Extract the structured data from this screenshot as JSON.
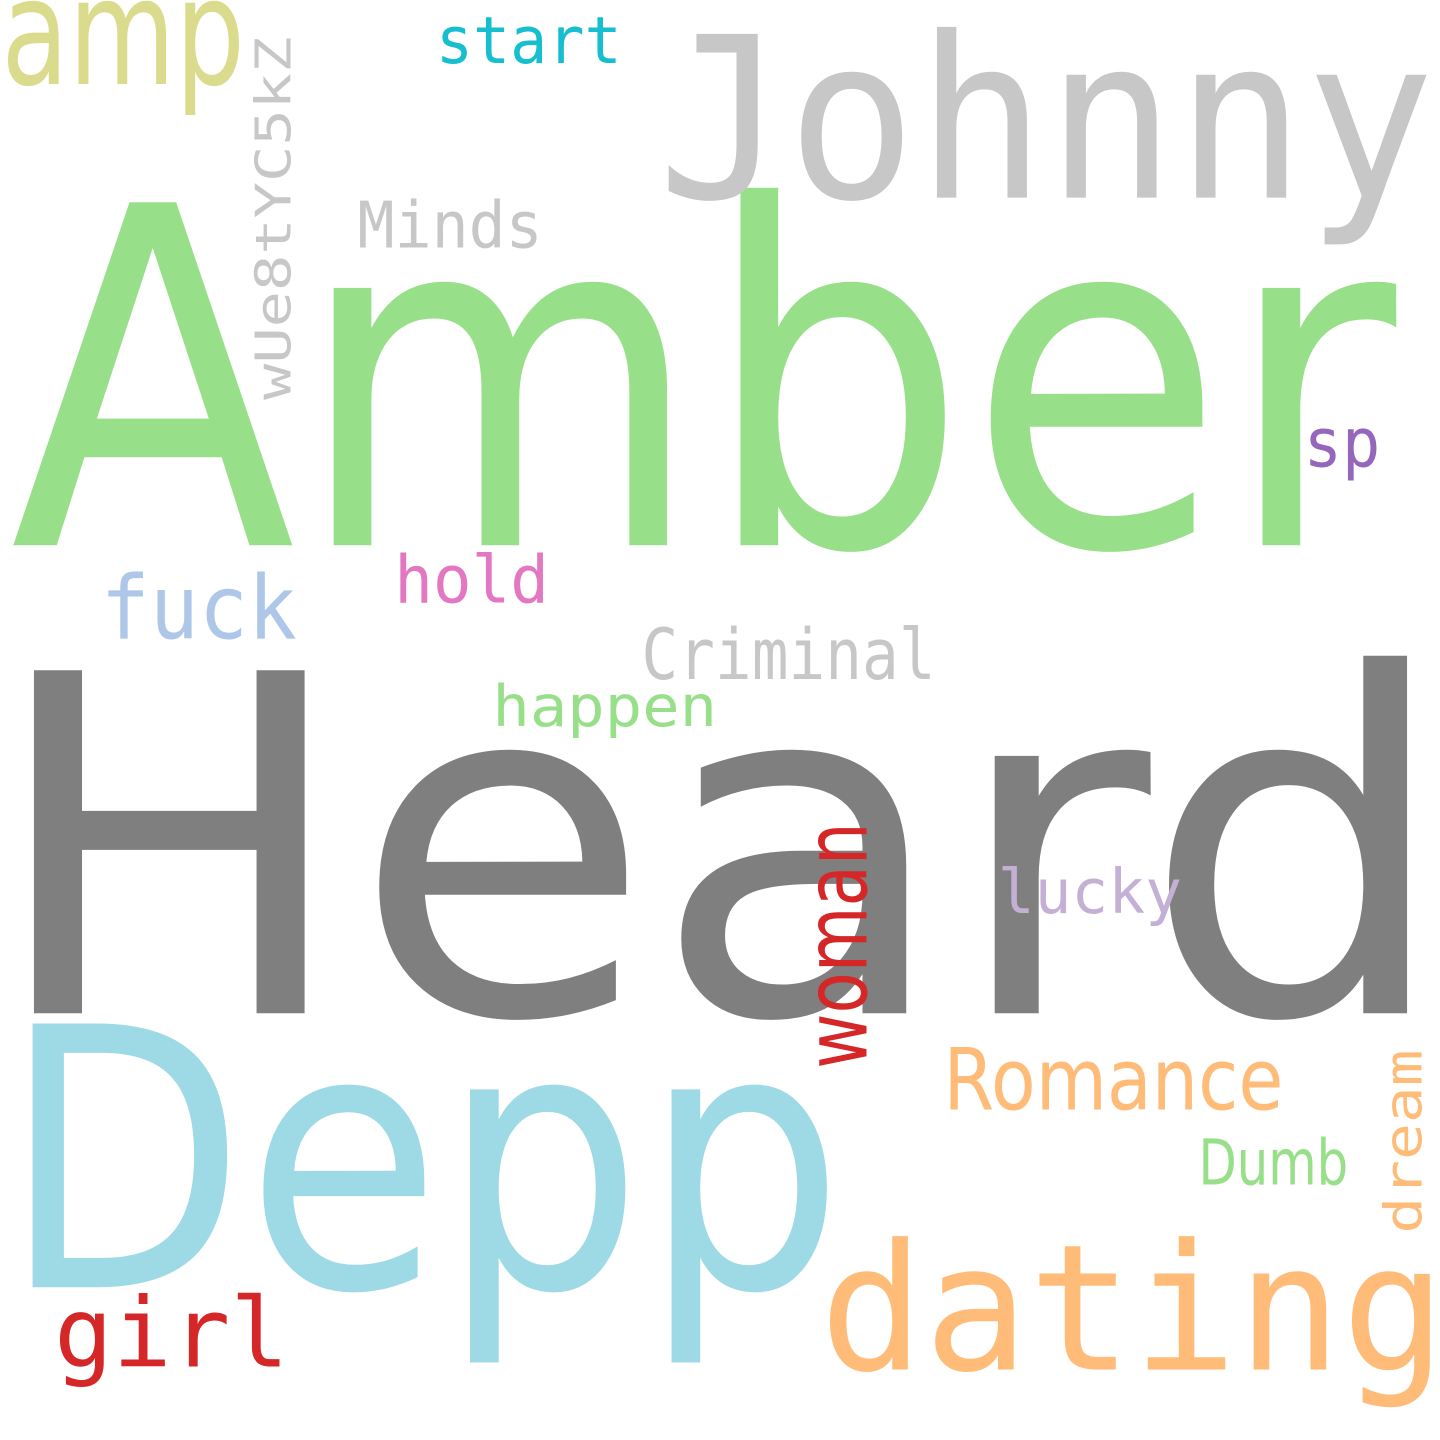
{
  "background": "#ffffff",
  "words": [
    {
      "key": "amber",
      "text": "Amber",
      "color": "#98df8a"
    },
    {
      "key": "heard",
      "text": "Heard",
      "color": "#7f7f7f"
    },
    {
      "key": "depp",
      "text": "Depp",
      "color": "#9edae5"
    },
    {
      "key": "johnny",
      "text": "Johnny",
      "color": "#c7c7c7"
    },
    {
      "key": "dating",
      "text": "dating",
      "color": "#ffbb78"
    },
    {
      "key": "amp",
      "text": "amp",
      "color": "#dbdb8d"
    },
    {
      "key": "girl",
      "text": "girl",
      "color": "#d62728"
    },
    {
      "key": "woman",
      "text": "woman",
      "color": "#d62728",
      "rotated": true
    },
    {
      "key": "code",
      "text": "wUe8tYC5kZ",
      "color": "#c7c7c7",
      "rotated": true
    },
    {
      "key": "fuck",
      "text": "fuck",
      "color": "#aec7e8"
    },
    {
      "key": "romance",
      "text": "Romance",
      "color": "#ffbb78"
    },
    {
      "key": "criminal",
      "text": "Criminal",
      "color": "#c7c7c7"
    },
    {
      "key": "happen",
      "text": "happen",
      "color": "#98df8a"
    },
    {
      "key": "start",
      "text": "start",
      "color": "#17becf"
    },
    {
      "key": "minds",
      "text": "Minds",
      "color": "#c7c7c7"
    },
    {
      "key": "hold",
      "text": "hold",
      "color": "#e377c2"
    },
    {
      "key": "lucky",
      "text": "lucky",
      "color": "#c5b0d5"
    },
    {
      "key": "dumb",
      "text": "Dumb",
      "color": "#98df8a"
    },
    {
      "key": "dream",
      "text": "dream",
      "color": "#ffbb78",
      "rotated": true
    },
    {
      "key": "sp",
      "text": "sp",
      "color": "#9467bd"
    }
  ]
}
